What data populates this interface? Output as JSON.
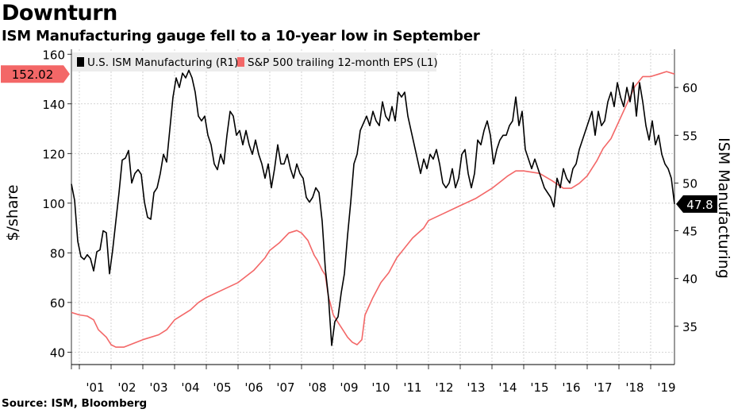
{
  "title": "Downturn",
  "subtitle": "ISM Manufacturing gauge fell to a 10-year low in September",
  "source": "Source: ISM, Bloomberg",
  "chart_data": {
    "type": "line",
    "title": "Downturn",
    "subtitle": "ISM Manufacturing gauge fell to a 10-year low in September",
    "left_axis_label": "$/share",
    "right_axis_label": "ISM Manufacturing",
    "left_ylim": [
      35,
      162
    ],
    "right_ylim": [
      31,
      64
    ],
    "left_ticks": [
      40,
      60,
      80,
      100,
      120,
      140,
      160
    ],
    "right_ticks": [
      35,
      40,
      45,
      50,
      55,
      60
    ],
    "x_ticks": [
      "'01",
      "'02",
      "'03",
      "'04",
      "'05",
      "'06",
      "'07",
      "'08",
      "'09",
      "'10",
      "'11",
      "'12",
      "'13",
      "'14",
      "'15",
      "'16",
      "'17",
      "'18",
      "'19"
    ],
    "x_range": [
      2000.75,
      2019.75
    ],
    "grid": true,
    "legend_placement": "top-left",
    "series": [
      {
        "name": "U.S. ISM Manufacturing (R1)",
        "axis": "right",
        "color": "#000000",
        "last_value_label": "47.8",
        "points": [
          [
            2000.75,
            49.9
          ],
          [
            2000.85,
            48.2
          ],
          [
            2000.95,
            43.9
          ],
          [
            2001.05,
            42.3
          ],
          [
            2001.15,
            42.0
          ],
          [
            2001.25,
            42.5
          ],
          [
            2001.35,
            42.1
          ],
          [
            2001.45,
            40.8
          ],
          [
            2001.55,
            42.8
          ],
          [
            2001.65,
            43.0
          ],
          [
            2001.75,
            45.0
          ],
          [
            2001.85,
            44.8
          ],
          [
            2001.95,
            40.5
          ],
          [
            2002.05,
            43.0
          ],
          [
            2002.15,
            46.0
          ],
          [
            2002.25,
            49.0
          ],
          [
            2002.35,
            52.4
          ],
          [
            2002.45,
            52.6
          ],
          [
            2002.55,
            53.4
          ],
          [
            2002.65,
            50.0
          ],
          [
            2002.75,
            51.0
          ],
          [
            2002.85,
            51.4
          ],
          [
            2002.95,
            50.9
          ],
          [
            2003.05,
            48.0
          ],
          [
            2003.15,
            46.4
          ],
          [
            2003.25,
            46.2
          ],
          [
            2003.35,
            49.0
          ],
          [
            2003.45,
            49.5
          ],
          [
            2003.55,
            51.0
          ],
          [
            2003.65,
            53.0
          ],
          [
            2003.75,
            52.2
          ],
          [
            2003.85,
            55.6
          ],
          [
            2003.95,
            59.0
          ],
          [
            2004.05,
            61.0
          ],
          [
            2004.15,
            60.0
          ],
          [
            2004.25,
            61.5
          ],
          [
            2004.35,
            61.0
          ],
          [
            2004.45,
            61.8
          ],
          [
            2004.55,
            61.0
          ],
          [
            2004.65,
            59.5
          ],
          [
            2004.75,
            57.0
          ],
          [
            2004.85,
            56.5
          ],
          [
            2004.95,
            57.0
          ],
          [
            2005.05,
            55.0
          ],
          [
            2005.15,
            54.0
          ],
          [
            2005.25,
            52.0
          ],
          [
            2005.35,
            51.4
          ],
          [
            2005.45,
            53.0
          ],
          [
            2005.55,
            52.0
          ],
          [
            2005.65,
            55.0
          ],
          [
            2005.75,
            57.5
          ],
          [
            2005.85,
            57.0
          ],
          [
            2005.95,
            55.0
          ],
          [
            2006.05,
            55.5
          ],
          [
            2006.15,
            54.0
          ],
          [
            2006.25,
            55.5
          ],
          [
            2006.35,
            54.0
          ],
          [
            2006.45,
            53.0
          ],
          [
            2006.55,
            54.5
          ],
          [
            2006.65,
            53.0
          ],
          [
            2006.75,
            52.0
          ],
          [
            2006.85,
            50.5
          ],
          [
            2006.95,
            52.0
          ],
          [
            2007.05,
            49.5
          ],
          [
            2007.15,
            51.5
          ],
          [
            2007.25,
            54.0
          ],
          [
            2007.35,
            52.0
          ],
          [
            2007.45,
            52.0
          ],
          [
            2007.55,
            53.0
          ],
          [
            2007.65,
            51.5
          ],
          [
            2007.75,
            50.5
          ],
          [
            2007.85,
            52.0
          ],
          [
            2007.95,
            51.0
          ],
          [
            2008.05,
            50.5
          ],
          [
            2008.15,
            48.5
          ],
          [
            2008.25,
            48.0
          ],
          [
            2008.35,
            48.5
          ],
          [
            2008.45,
            49.5
          ],
          [
            2008.55,
            49.0
          ],
          [
            2008.65,
            46.0
          ],
          [
            2008.75,
            41.0
          ],
          [
            2008.85,
            38.0
          ],
          [
            2008.95,
            33.0
          ],
          [
            2009.05,
            35.5
          ],
          [
            2009.15,
            36.0
          ],
          [
            2009.25,
            38.5
          ],
          [
            2009.35,
            40.5
          ],
          [
            2009.45,
            44.5
          ],
          [
            2009.55,
            48.0
          ],
          [
            2009.65,
            52.0
          ],
          [
            2009.75,
            53.0
          ],
          [
            2009.85,
            55.5
          ],
          [
            2010.05,
            57.0
          ],
          [
            2010.15,
            56.0
          ],
          [
            2010.25,
            57.5
          ],
          [
            2010.35,
            56.5
          ],
          [
            2010.45,
            56.0
          ],
          [
            2010.55,
            58.5
          ],
          [
            2010.65,
            57.0
          ],
          [
            2010.75,
            56.5
          ],
          [
            2010.85,
            58.0
          ],
          [
            2010.95,
            56.5
          ],
          [
            2011.05,
            59.5
          ],
          [
            2011.15,
            59.0
          ],
          [
            2011.25,
            59.5
          ],
          [
            2011.35,
            57.0
          ],
          [
            2011.45,
            55.5
          ],
          [
            2011.55,
            54.0
          ],
          [
            2011.65,
            52.5
          ],
          [
            2011.75,
            51.0
          ],
          [
            2011.85,
            52.5
          ],
          [
            2011.95,
            51.5
          ],
          [
            2012.05,
            53.0
          ],
          [
            2012.15,
            52.5
          ],
          [
            2012.25,
            53.5
          ],
          [
            2012.35,
            52.0
          ],
          [
            2012.45,
            50.0
          ],
          [
            2012.55,
            49.5
          ],
          [
            2012.65,
            50.0
          ],
          [
            2012.75,
            51.5
          ],
          [
            2012.85,
            49.5
          ],
          [
            2012.95,
            50.5
          ],
          [
            2013.05,
            53.0
          ],
          [
            2013.15,
            53.5
          ],
          [
            2013.25,
            51.0
          ],
          [
            2013.35,
            49.5
          ],
          [
            2013.45,
            51.0
          ],
          [
            2013.55,
            54.5
          ],
          [
            2013.65,
            54.0
          ],
          [
            2013.75,
            55.5
          ],
          [
            2013.85,
            56.5
          ],
          [
            2013.95,
            55.0
          ],
          [
            2014.05,
            52.0
          ],
          [
            2014.15,
            53.5
          ],
          [
            2014.25,
            54.5
          ],
          [
            2014.35,
            55.0
          ],
          [
            2014.45,
            55.0
          ],
          [
            2014.55,
            56.0
          ],
          [
            2014.65,
            56.5
          ],
          [
            2014.75,
            59.0
          ],
          [
            2014.85,
            56.0
          ],
          [
            2014.95,
            57.5
          ],
          [
            2015.05,
            53.5
          ],
          [
            2015.15,
            52.5
          ],
          [
            2015.25,
            51.5
          ],
          [
            2015.35,
            52.5
          ],
          [
            2015.45,
            51.5
          ],
          [
            2015.55,
            50.5
          ],
          [
            2015.65,
            49.5
          ],
          [
            2015.75,
            49.0
          ],
          [
            2015.85,
            48.5
          ],
          [
            2015.95,
            47.5
          ],
          [
            2016.05,
            50.5
          ],
          [
            2016.15,
            49.5
          ],
          [
            2016.25,
            51.5
          ],
          [
            2016.35,
            50.5
          ],
          [
            2016.45,
            50.0
          ],
          [
            2016.55,
            51.5
          ],
          [
            2016.65,
            52.0
          ],
          [
            2016.75,
            53.5
          ],
          [
            2016.85,
            54.5
          ],
          [
            2016.95,
            55.5
          ],
          [
            2017.05,
            56.5
          ],
          [
            2017.15,
            57.5
          ],
          [
            2017.25,
            55.0
          ],
          [
            2017.35,
            57.5
          ],
          [
            2017.45,
            56.0
          ],
          [
            2017.55,
            56.5
          ],
          [
            2017.65,
            58.5
          ],
          [
            2017.75,
            59.5
          ],
          [
            2017.85,
            58.0
          ],
          [
            2017.95,
            60.5
          ],
          [
            2018.05,
            59.0
          ],
          [
            2018.15,
            58.0
          ],
          [
            2018.25,
            60.0
          ],
          [
            2018.35,
            58.5
          ],
          [
            2018.45,
            60.5
          ],
          [
            2018.55,
            57.0
          ],
          [
            2018.65,
            60.5
          ],
          [
            2018.75,
            58.5
          ],
          [
            2018.85,
            56.0
          ],
          [
            2018.95,
            54.5
          ],
          [
            2019.05,
            56.5
          ],
          [
            2019.15,
            54.0
          ],
          [
            2019.25,
            55.0
          ],
          [
            2019.35,
            53.0
          ],
          [
            2019.45,
            52.0
          ],
          [
            2019.55,
            51.5
          ],
          [
            2019.65,
            50.5
          ],
          [
            2019.75,
            47.8
          ]
        ]
      },
      {
        "name": "S&P 500 trailing 12-month EPS (L1)",
        "axis": "left",
        "color": "#f36767",
        "last_value_label": "152.02",
        "points": [
          [
            2000.75,
            56
          ],
          [
            2001.0,
            55
          ],
          [
            2001.25,
            54.5
          ],
          [
            2001.45,
            53
          ],
          [
            2001.6,
            49
          ],
          [
            2001.85,
            46
          ],
          [
            2002.0,
            43
          ],
          [
            2002.15,
            42
          ],
          [
            2002.4,
            42
          ],
          [
            2002.6,
            43
          ],
          [
            2003.0,
            45
          ],
          [
            2003.5,
            47
          ],
          [
            2003.75,
            49
          ],
          [
            2004.0,
            53
          ],
          [
            2004.5,
            57
          ],
          [
            2004.75,
            60
          ],
          [
            2005.0,
            62
          ],
          [
            2005.5,
            65
          ],
          [
            2006.0,
            68
          ],
          [
            2006.5,
            73
          ],
          [
            2006.85,
            78
          ],
          [
            2007.0,
            81
          ],
          [
            2007.3,
            84
          ],
          [
            2007.6,
            88
          ],
          [
            2007.85,
            89
          ],
          [
            2008.0,
            88
          ],
          [
            2008.2,
            85
          ],
          [
            2008.4,
            79
          ],
          [
            2008.5,
            77
          ],
          [
            2008.65,
            73
          ],
          [
            2008.75,
            71
          ],
          [
            2008.85,
            62
          ],
          [
            2008.9,
            60
          ],
          [
            2009.0,
            55
          ],
          [
            2009.15,
            52
          ],
          [
            2009.3,
            49
          ],
          [
            2009.45,
            46
          ],
          [
            2009.6,
            44
          ],
          [
            2009.75,
            43
          ],
          [
            2009.9,
            45
          ],
          [
            2010.0,
            55
          ],
          [
            2010.25,
            62
          ],
          [
            2010.5,
            68
          ],
          [
            2010.75,
            72
          ],
          [
            2011.0,
            78
          ],
          [
            2011.5,
            86
          ],
          [
            2011.85,
            90
          ],
          [
            2012.0,
            93
          ],
          [
            2012.5,
            96
          ],
          [
            2013.0,
            99
          ],
          [
            2013.5,
            102
          ],
          [
            2014.0,
            106
          ],
          [
            2014.3,
            109
          ],
          [
            2014.5,
            111
          ],
          [
            2014.75,
            113
          ],
          [
            2015.0,
            113
          ],
          [
            2015.5,
            112
          ],
          [
            2015.9,
            109
          ],
          [
            2016.25,
            106
          ],
          [
            2016.5,
            106
          ],
          [
            2016.75,
            108
          ],
          [
            2017.0,
            111
          ],
          [
            2017.3,
            117
          ],
          [
            2017.5,
            122
          ],
          [
            2017.75,
            126
          ],
          [
            2018.0,
            133
          ],
          [
            2018.25,
            140
          ],
          [
            2018.5,
            147
          ],
          [
            2018.75,
            151
          ],
          [
            2019.0,
            151
          ],
          [
            2019.25,
            152
          ],
          [
            2019.5,
            153
          ],
          [
            2019.75,
            152.02
          ]
        ]
      }
    ]
  }
}
